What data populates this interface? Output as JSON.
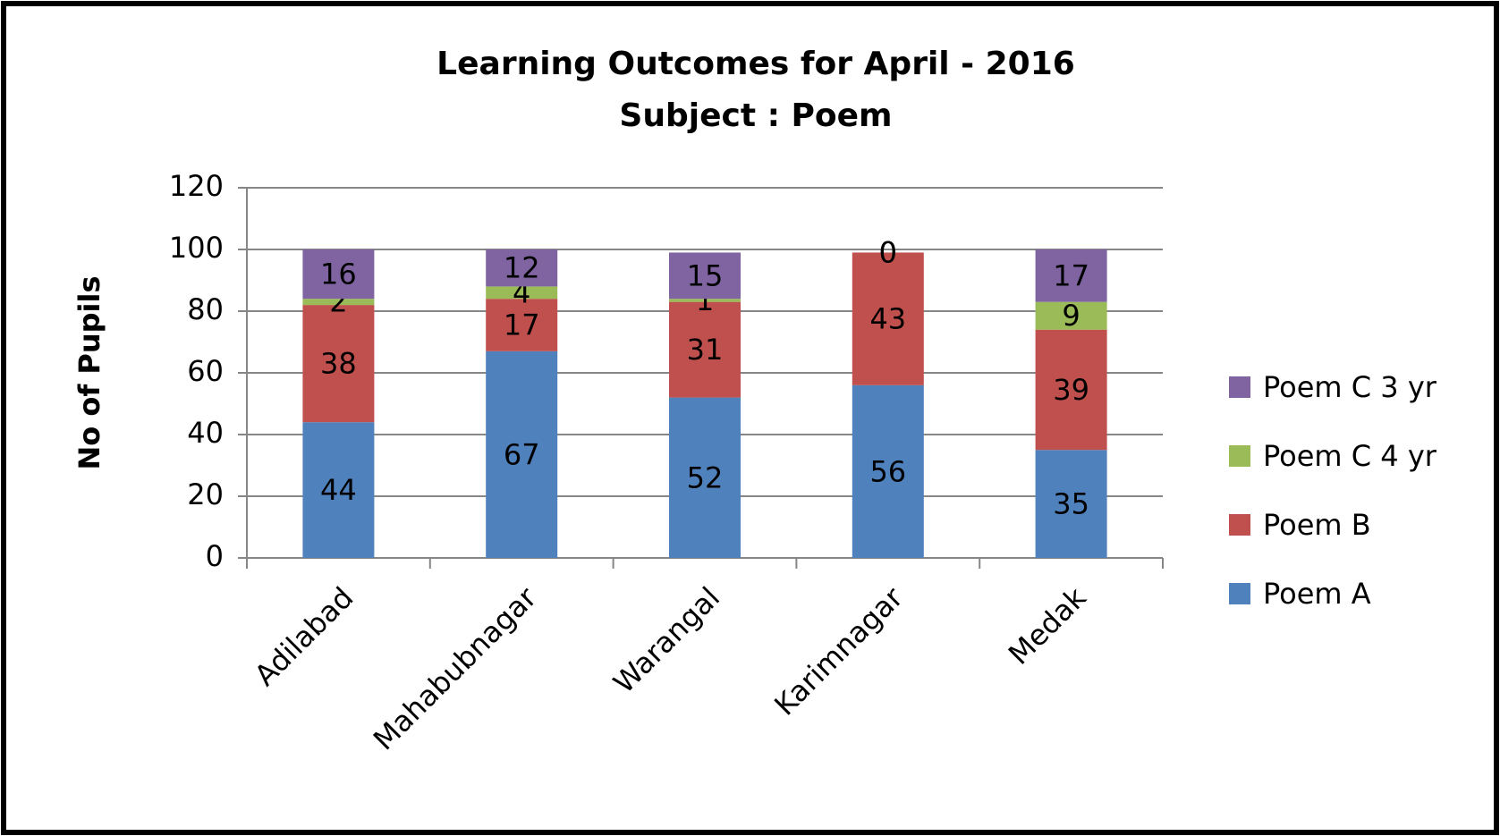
{
  "chart_data": {
    "type": "stacked_bar",
    "title": "Learning Outcomes for April - 2016",
    "subtitle": "Subject : Poem",
    "y_label": "No of Pupils",
    "categories": [
      "Adilabad",
      "Mahabubnagar",
      "Warangal",
      "Karimnagar",
      "Medak"
    ],
    "series": [
      {
        "name": "Poem A",
        "color": "#4f81bd",
        "values": [
          44,
          67,
          52,
          56,
          35
        ]
      },
      {
        "name": "Poem B",
        "color": "#c0504d",
        "values": [
          38,
          17,
          31,
          43,
          39
        ]
      },
      {
        "name": "Poem C 4 yr",
        "color": "#9bbb59",
        "values": [
          2,
          4,
          1,
          0,
          9
        ]
      },
      {
        "name": "Poem C 3 yr",
        "color": "#8064a2",
        "values": [
          16,
          12,
          15,
          0,
          17
        ]
      }
    ],
    "ylim": [
      0,
      120
    ],
    "yticks": [
      0,
      20,
      40,
      60,
      80,
      100,
      120
    ],
    "grid": true,
    "legend": "right"
  }
}
